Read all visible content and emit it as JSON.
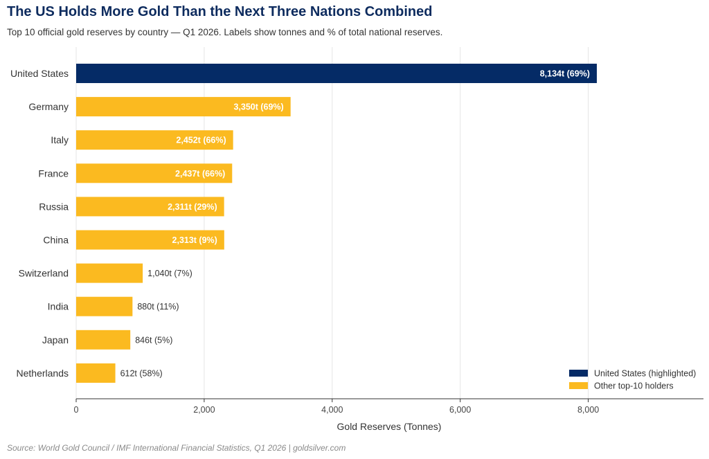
{
  "title": "The US Holds More Gold Than the Next Three Nations Combined",
  "subtitle": "Top 10 official gold reserves by country — Q1 2026. Labels show tonnes and % of total national reserves.",
  "source": "Source: World Gold Council / IMF International Financial Statistics, Q1 2026  |  goldsilver.com",
  "colors": {
    "highlight": "#052b66",
    "other": "#fbba20",
    "grid": "#e4e4e4",
    "axis": "#333333"
  },
  "chart_data": {
    "type": "bar",
    "orientation": "horizontal",
    "categories": [
      "United States",
      "Germany",
      "Italy",
      "France",
      "Russia",
      "China",
      "Switzerland",
      "India",
      "Japan",
      "Netherlands"
    ],
    "values": [
      8134,
      3350,
      2452,
      2437,
      2311,
      2313,
      1040,
      880,
      846,
      612
    ],
    "labels": [
      "8,134t  (69%)",
      "3,350t  (69%)",
      "2,452t  (66%)",
      "2,437t  (66%)",
      "2,311t  (29%)",
      "2,313t  (9%)",
      "1,040t  (7%)",
      "880t  (11%)",
      "846t  (5%)",
      "612t  (58%)"
    ],
    "highlighted": [
      true,
      false,
      false,
      false,
      false,
      false,
      false,
      false,
      false,
      false
    ],
    "xlabel": "Gold Reserves (Tonnes)",
    "ylabel": "",
    "xlim": [
      0,
      9800
    ],
    "xticks": [
      0,
      2000,
      4000,
      6000,
      8000
    ],
    "xtick_labels": [
      "0",
      "2,000",
      "4,000",
      "6,000",
      "8,000"
    ],
    "grid": "vertical",
    "legend": {
      "placement": "bottom-right",
      "entries": [
        {
          "name": "United States (highlighted)",
          "color": "#052b66"
        },
        {
          "name": "Other top-10 holders",
          "color": "#fbba20"
        }
      ]
    }
  }
}
